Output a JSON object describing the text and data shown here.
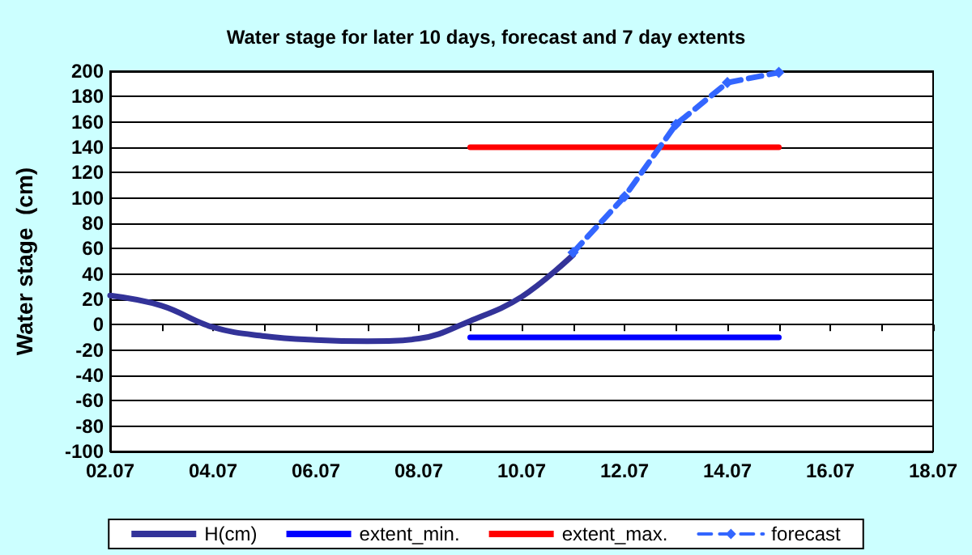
{
  "chart_data": {
    "type": "line",
    "title": "Water stage for later 10 days, forecast and 7 day extents",
    "ylabel": "Water stage  (cm)",
    "xlim": [
      "--07-02",
      "--07-18"
    ],
    "xticks": [
      {
        "value": "--07-02",
        "label": "02.07"
      },
      {
        "value": "--07-03",
        "label": null
      },
      {
        "value": "--07-04",
        "label": "04.07"
      },
      {
        "value": "--07-05",
        "label": null
      },
      {
        "value": "--07-06",
        "label": "06.07"
      },
      {
        "value": "--07-07",
        "label": null
      },
      {
        "value": "--07-08",
        "label": "08.07"
      },
      {
        "value": "--07-09",
        "label": null
      },
      {
        "value": "--07-10",
        "label": "10.07"
      },
      {
        "value": "--07-11",
        "label": null
      },
      {
        "value": "--07-12",
        "label": "12.07"
      },
      {
        "value": "--07-13",
        "label": null
      },
      {
        "value": "--07-14",
        "label": "14.07"
      },
      {
        "value": "--07-15",
        "label": null
      },
      {
        "value": "--07-16",
        "label": "16.07"
      },
      {
        "value": "--07-17",
        "label": null
      },
      {
        "value": "--07-18",
        "label": "18.07"
      }
    ],
    "ylim": [
      -100,
      200
    ],
    "yticks": [
      -100,
      -80,
      -60,
      -40,
      -20,
      0,
      20,
      40,
      60,
      80,
      100,
      120,
      140,
      160,
      180,
      200
    ],
    "grid": "y",
    "legend": "bottom",
    "series": [
      {
        "name": "H(cm)",
        "color": "#333399",
        "x": [
          "--07-02",
          "--07-03",
          "--07-04",
          "--07-05",
          "--07-06",
          "--07-07",
          "--07-08",
          "--07-09",
          "--07-10",
          "--07-11"
        ],
        "values": [
          23,
          15,
          -2,
          -9,
          -12,
          -13,
          -11,
          3,
          22,
          55
        ],
        "marker": "none",
        "line_style": "solid"
      },
      {
        "name": "extent_min.",
        "color": "#0000ff",
        "x": [
          "--07-09",
          "--07-15"
        ],
        "values": [
          -10,
          -10
        ],
        "marker": "none",
        "line_style": "solid"
      },
      {
        "name": "extent_max.",
        "color": "#ff0000",
        "x": [
          "--07-09",
          "--07-15"
        ],
        "values": [
          140,
          140
        ],
        "marker": "none",
        "line_style": "solid"
      },
      {
        "name": "forecast",
        "color": "#3366ff",
        "x": [
          "--07-11",
          "--07-12",
          "--07-13",
          "--07-14",
          "--07-15"
        ],
        "values": [
          57,
          101,
          158,
          191,
          199
        ],
        "marker": "diamond",
        "line_style": "dashed"
      }
    ]
  }
}
